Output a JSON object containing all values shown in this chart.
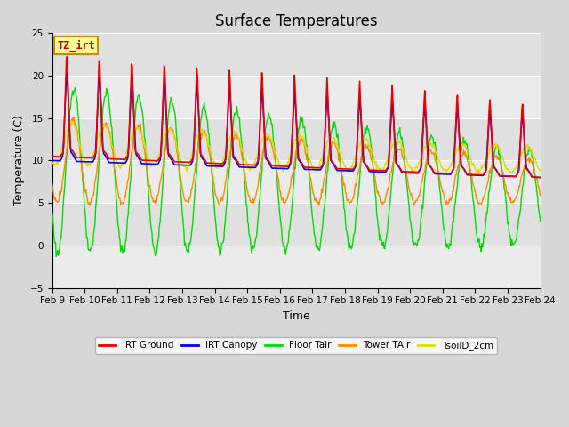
{
  "title": "Surface Temperatures",
  "xlabel": "Time",
  "ylabel": "Temperature (C)",
  "ylim": [
    -5,
    25
  ],
  "xlim": [
    0,
    15
  ],
  "series_colors": {
    "IRT Ground": "#ee0000",
    "IRT Canopy": "#0000ee",
    "Floor Tair": "#00dd00",
    "Tower TAir": "#ff8800",
    "TsoilD_2cm": "#dddd00"
  },
  "xtick_labels": [
    "Feb 9",
    "Feb 10",
    "Feb 11",
    "Feb 12",
    "Feb 13",
    "Feb 14",
    "Feb 15",
    "Feb 16",
    "Feb 17",
    "Feb 18",
    "Feb 19",
    "Feb 20",
    "Feb 21",
    "Feb 22",
    "Feb 23",
    "Feb 24"
  ],
  "annotation_text": "TZ_irt",
  "annotation_bg": "#ffff99",
  "annotation_border": "#cc8800",
  "annotation_text_color": "#cc0000",
  "title_fontsize": 12,
  "axis_fontsize": 9,
  "tick_fontsize": 7.5,
  "grid_colors": [
    "#f0f0f0",
    "#e0e0e0"
  ],
  "plot_bg": "#e8e8e8",
  "fig_bg": "#d8d8d8"
}
